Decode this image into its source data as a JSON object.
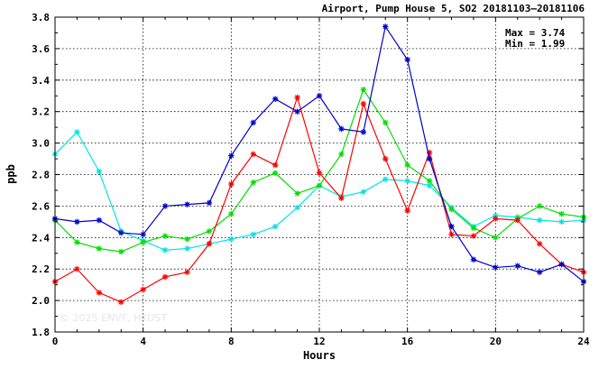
{
  "chart_data": {
    "type": "line",
    "title": "Airport, Pump House 5, SO2 20181103–20181106",
    "xlabel": "Hours",
    "ylabel": "ppb",
    "xlim": [
      0,
      24
    ],
    "ylim": [
      1.8,
      3.8
    ],
    "x_ticks": [
      0,
      4,
      8,
      12,
      16,
      20,
      24
    ],
    "y_ticks": [
      1.8,
      2.0,
      2.2,
      2.4,
      2.6,
      2.8,
      3.0,
      3.2,
      3.4,
      3.6,
      3.8
    ],
    "grid": true,
    "marker": "asterisk",
    "annotations": {
      "max_text": "Max = 3.74",
      "min_text": "Min = 1.99"
    },
    "watermark": "© 2025 ENVF, HKUST",
    "x": [
      0,
      1,
      2,
      3,
      4,
      5,
      6,
      7,
      8,
      9,
      10,
      11,
      12,
      13,
      14,
      15,
      16,
      17,
      18,
      19,
      20,
      21,
      22,
      23,
      24
    ],
    "series": [
      {
        "color": "#00e5e5",
        "values": [
          2.93,
          3.07,
          2.82,
          2.44,
          2.38,
          2.32,
          2.33,
          2.36,
          2.39,
          2.42,
          2.47,
          2.59,
          2.73,
          2.66,
          2.69,
          2.77,
          2.76,
          2.73,
          2.59,
          2.47,
          2.54,
          2.53,
          2.51,
          2.5,
          2.51
        ]
      },
      {
        "color": "#00e000",
        "values": [
          2.51,
          2.37,
          2.33,
          2.31,
          2.37,
          2.41,
          2.39,
          2.44,
          2.55,
          2.75,
          2.81,
          2.68,
          2.73,
          2.93,
          3.34,
          3.13,
          2.86,
          2.76,
          2.58,
          2.46,
          2.4,
          2.52,
          2.6,
          2.55,
          2.53
        ]
      },
      {
        "color": "#ff0000",
        "values": [
          2.12,
          2.2,
          2.05,
          1.99,
          2.07,
          2.15,
          2.18,
          2.36,
          2.74,
          2.93,
          2.86,
          3.29,
          2.81,
          2.65,
          3.25,
          2.9,
          2.57,
          2.94,
          2.42,
          2.41,
          2.52,
          2.51,
          2.36,
          2.23,
          2.18
        ]
      },
      {
        "color": "#0000cc",
        "values": [
          2.52,
          2.5,
          2.51,
          2.43,
          2.42,
          2.6,
          2.61,
          2.62,
          2.92,
          3.13,
          3.28,
          3.2,
          3.3,
          3.09,
          3.07,
          3.74,
          3.53,
          2.9,
          2.47,
          2.26,
          2.21,
          2.22,
          2.18,
          2.23,
          2.12
        ]
      }
    ]
  }
}
